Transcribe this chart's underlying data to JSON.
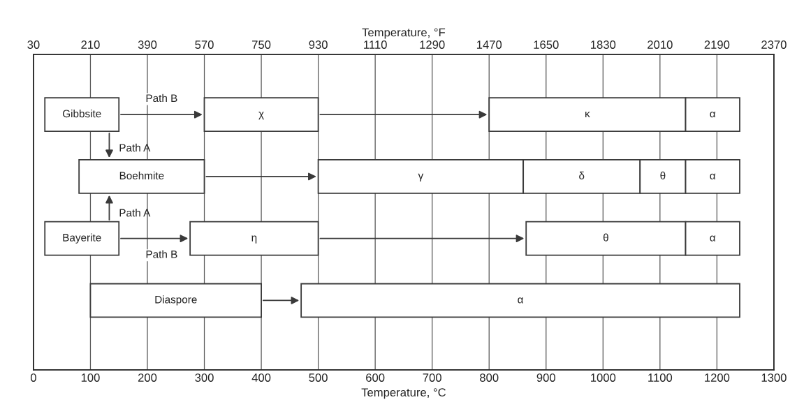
{
  "chart_data": {
    "type": "bar",
    "orientation": "horizontal",
    "xlabel": "Temperature, °C",
    "x2label": "Temperature, °F",
    "categories": [
      null,
      null,
      null,
      null
    ],
    "series": [
      {
        "color": "#ffffff",
        "base": [
          20,
          80,
          20,
          100
        ],
        "values": [
          130,
          220,
          130,
          300
        ],
        "value_labels": [
          "Gibbsite",
          "Boehmite",
          "Bayerite",
          "Diaspore"
        ]
      },
      {
        "color": "#ffffff",
        "base": [
          300,
          500,
          275,
          470
        ],
        "values": [
          200,
          360,
          225,
          770
        ],
        "value_labels": [
          "χ",
          "γ",
          "η",
          "α"
        ]
      },
      {
        "color": "#ffffff",
        "base": [
          800,
          860,
          865,
          null
        ],
        "values": [
          345,
          205,
          280,
          null
        ],
        "value_labels": [
          "κ",
          "δ",
          "θ",
          null
        ]
      },
      {
        "color": "#ffffff",
        "base": [
          1145,
          1065,
          1145,
          null
        ],
        "values": [
          95,
          80,
          95,
          null
        ],
        "value_labels": [
          "α",
          "θ",
          "α",
          null
        ]
      },
      {
        "color": "#ffffff",
        "base": [
          null,
          1145,
          null,
          null
        ],
        "values": [
          null,
          95,
          null,
          null
        ],
        "value_labels": [
          null,
          "α",
          null,
          null
        ]
      }
    ],
    "annotations": [
      "Path B",
      "Path A",
      "Path A",
      "Path B"
    ],
    "xlim": [
      0,
      1300
    ],
    "xticks": [
      0,
      100,
      200,
      300,
      400,
      500,
      600,
      700,
      800,
      900,
      1000,
      1100,
      1200,
      1300
    ],
    "x2lim": [
      30,
      2370
    ],
    "x2ticks": [
      30,
      210,
      390,
      570,
      750,
      930,
      1110,
      1290,
      1470,
      1650,
      1830,
      2010,
      2190,
      2370
    ],
    "grid": "x",
    "legend": false
  }
}
